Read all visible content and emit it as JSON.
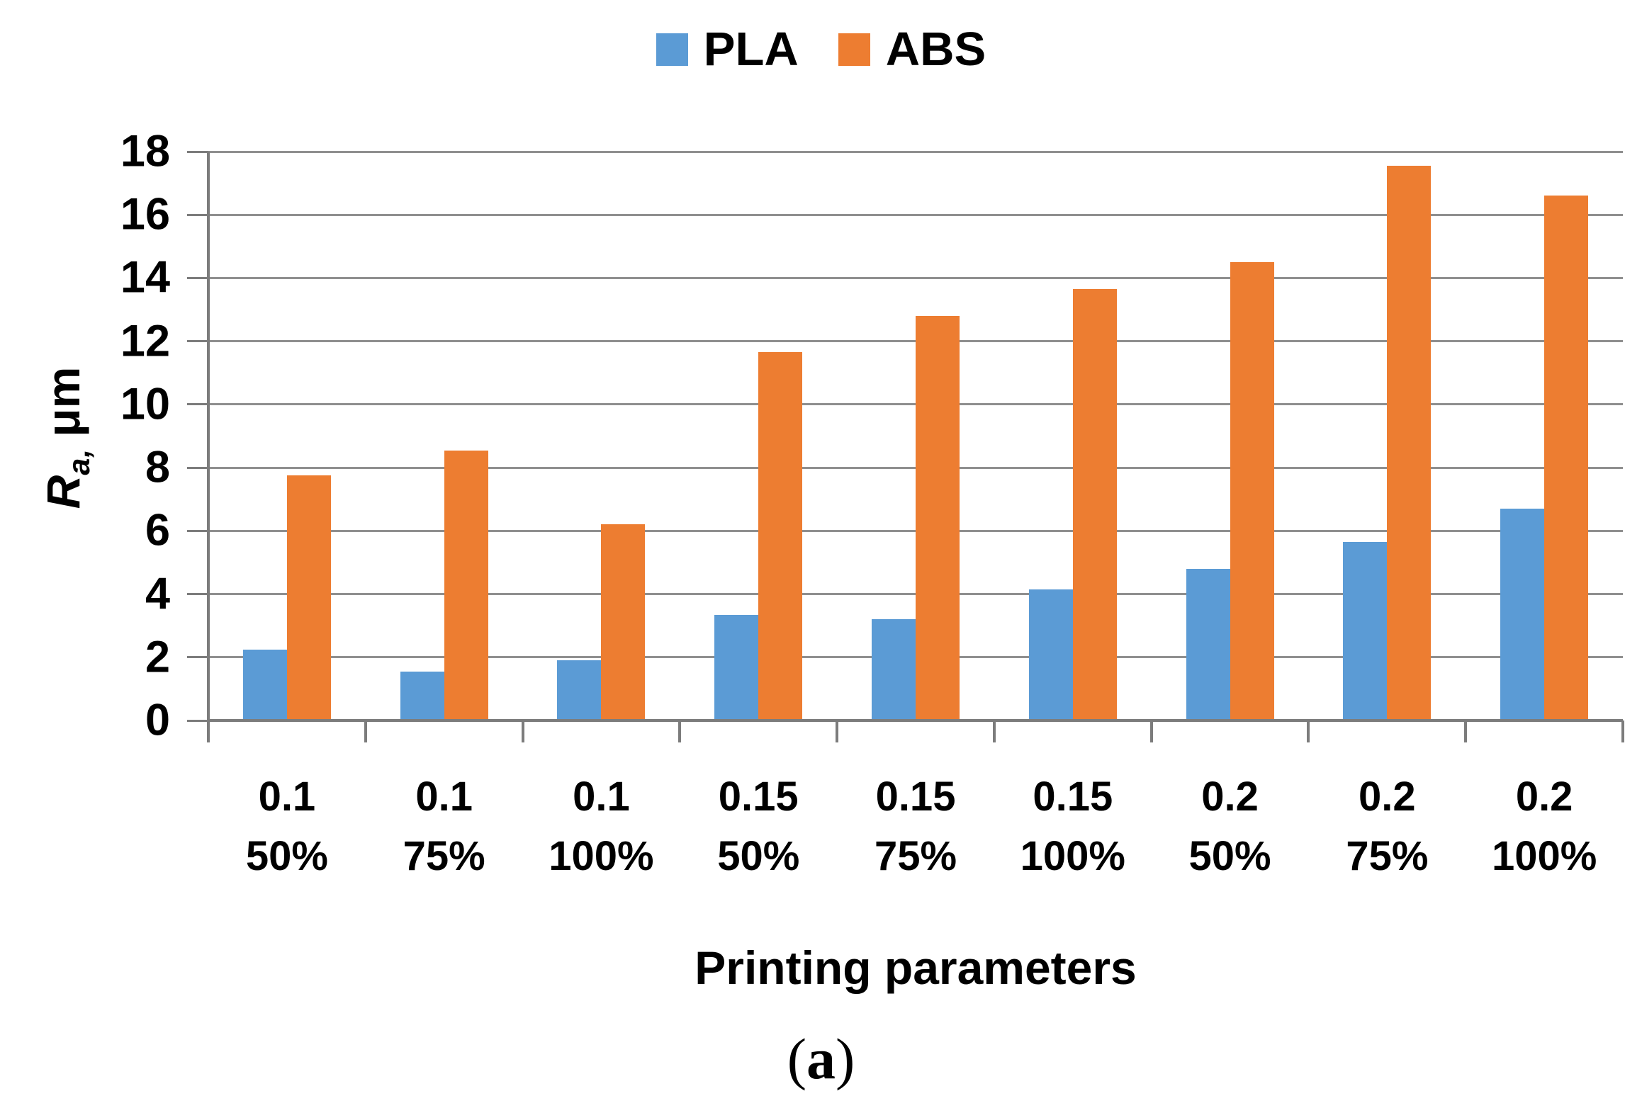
{
  "chart_data": {
    "type": "bar",
    "title": "",
    "categories": [
      [
        "0.1",
        "50%"
      ],
      [
        "0.1",
        "75%"
      ],
      [
        "0.1",
        "100%"
      ],
      [
        "0.15",
        "50%"
      ],
      [
        "0.15",
        "75%"
      ],
      [
        "0.15",
        "100%"
      ],
      [
        "0.2",
        "50%"
      ],
      [
        "0.2",
        "75%"
      ],
      [
        "0.2",
        "100%"
      ]
    ],
    "series": [
      {
        "name": "PLA",
        "color": "#5B9BD5",
        "values": [
          2.25,
          1.55,
          1.9,
          3.35,
          3.2,
          4.15,
          4.8,
          5.65,
          6.7
        ]
      },
      {
        "name": "ABS",
        "color": "#ED7D31",
        "values": [
          7.75,
          8.55,
          6.2,
          11.65,
          12.8,
          13.65,
          14.5,
          17.55,
          16.6
        ]
      }
    ],
    "xlabel": "Printing parameters",
    "ylabel": {
      "symbol": "R",
      "subscript": "a,",
      "unit": "μm"
    },
    "ylim": [
      0,
      18
    ],
    "yticks": [
      0,
      2,
      4,
      6,
      8,
      10,
      12,
      14,
      16,
      18
    ],
    "grid": true,
    "legend_position": "top"
  },
  "caption": {
    "open": "(",
    "letter": "a",
    "close": ")"
  },
  "colors": {
    "gridline": "#8f8f8f",
    "axis": "#7c7c7c",
    "text": "#000000"
  }
}
